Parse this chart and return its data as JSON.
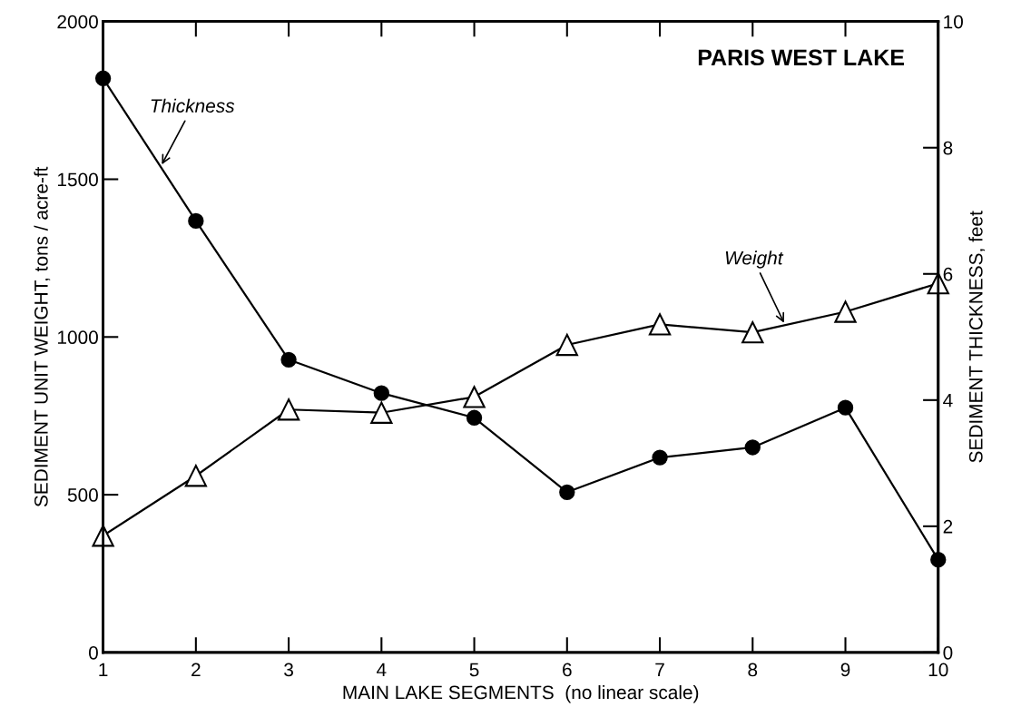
{
  "chart_data": {
    "type": "line",
    "title": "PARIS WEST LAKE",
    "xlabel": "MAIN LAKE SEGMENTS  (no linear scale)",
    "ylabel": "SEDIMENT UNIT WEIGHT, tons / acre-ft",
    "y2label": "SEDIMENT THICKNESS, feet",
    "x": [
      1,
      2,
      3,
      4,
      5,
      6,
      7,
      8,
      9,
      10
    ],
    "series": [
      {
        "name": "Thickness",
        "color": "#000000",
        "axis": "y2",
        "marker": "circle",
        "values": [
          9.1,
          6.84,
          4.64,
          4.11,
          3.72,
          2.54,
          3.09,
          3.25,
          3.88,
          1.47
        ]
      },
      {
        "name": "Weight",
        "color": "#000000",
        "axis": "y",
        "marker": "triangle",
        "values": [
          370,
          560,
          770,
          760,
          810,
          975,
          1040,
          1015,
          1080,
          1170
        ]
      }
    ],
    "xlim": [
      1,
      10
    ],
    "xticks": [
      1,
      2,
      3,
      4,
      5,
      6,
      7,
      8,
      9,
      10
    ],
    "ylim": [
      0,
      2000
    ],
    "yticks": [
      0,
      500,
      1000,
      1500,
      2000
    ],
    "y2lim": [
      0,
      10
    ],
    "y2ticks": [
      0,
      2,
      4,
      6,
      8,
      10
    ],
    "line_style": "solid",
    "grid": false
  }
}
